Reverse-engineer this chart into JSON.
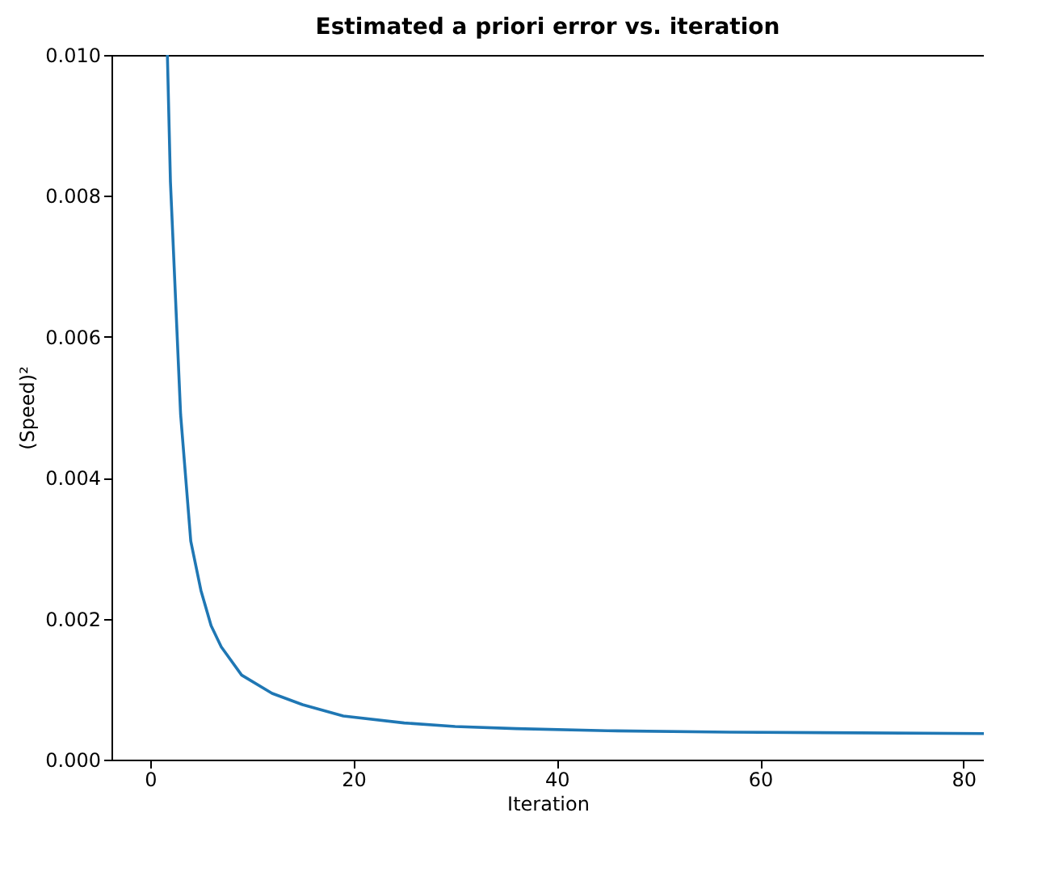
{
  "chart_data": {
    "type": "line",
    "title": "Estimated a priori error vs. iteration",
    "xlabel": "Iteration",
    "ylabel": "(Speed)²",
    "x": [
      1.7,
      2,
      3,
      4,
      5,
      6,
      7,
      9,
      12,
      15,
      19,
      25,
      30,
      36,
      45,
      57,
      70,
      82
    ],
    "series": [
      {
        "color": "#1f77b4",
        "values": [
          0.01,
          0.0082,
          0.0049,
          0.0031,
          0.0024,
          0.0019,
          0.0016,
          0.0012,
          0.00094,
          0.00078,
          0.00062,
          0.00052,
          0.00047,
          0.00044,
          0.00041,
          0.00039,
          0.00038,
          0.00037
        ]
      }
    ],
    "xlim": [
      -3.8,
      82
    ],
    "xticks": [
      0,
      20,
      40,
      60,
      80
    ],
    "ylim": [
      0,
      0.01
    ],
    "yticks": [
      {
        "value": 0,
        "label": "0.000"
      },
      0.002,
      0.004,
      0.006,
      0.008,
      {
        "value": 0.01,
        "label": "0.010"
      }
    ],
    "grid": false,
    "legend": false,
    "marker": "none",
    "line_style": "solid"
  }
}
